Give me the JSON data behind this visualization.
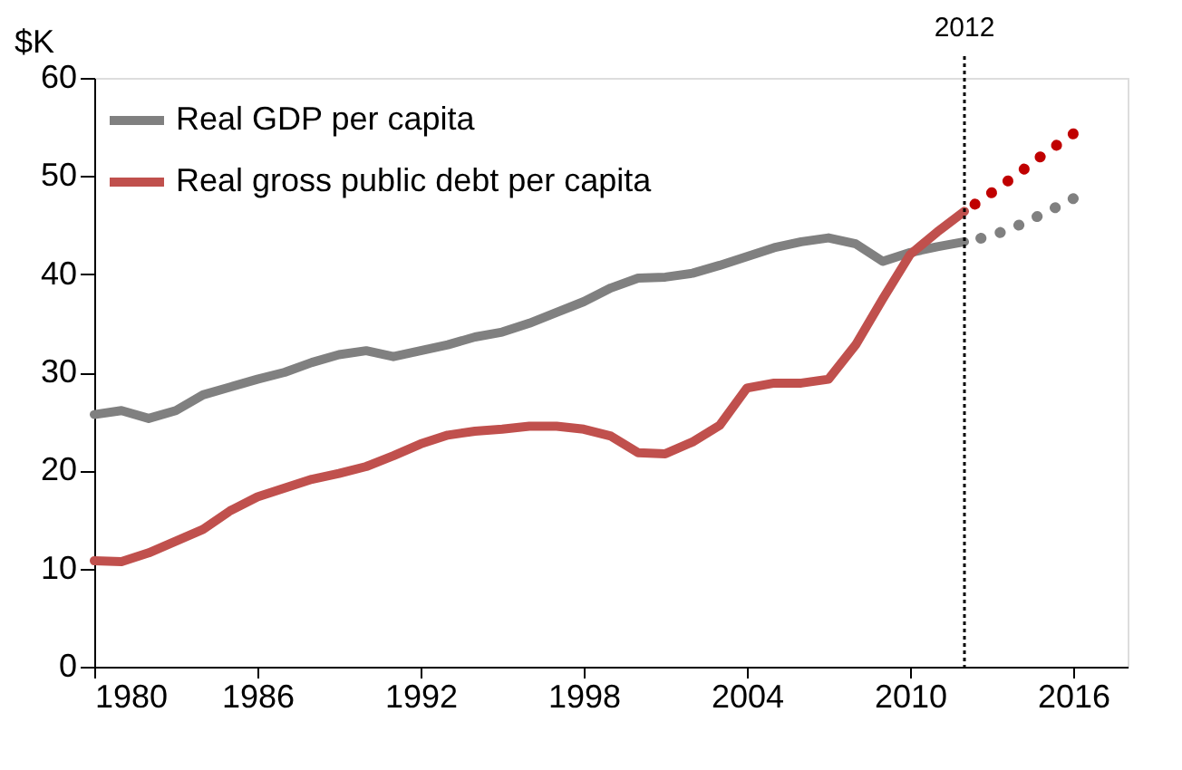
{
  "chart_data": {
    "type": "line",
    "ylabel": "$K",
    "x": [
      1980,
      1981,
      1982,
      1983,
      1984,
      1985,
      1986,
      1987,
      1988,
      1989,
      1990,
      1991,
      1992,
      1993,
      1994,
      1995,
      1996,
      1997,
      1998,
      1999,
      2000,
      2001,
      2002,
      2003,
      2004,
      2005,
      2006,
      2007,
      2008,
      2009,
      2010,
      2011,
      2012
    ],
    "series": [
      {
        "name": "Real GDP per capita",
        "color": "#808080",
        "line_style": "solid",
        "values": [
          25.7,
          26.1,
          25.3,
          26.1,
          27.7,
          28.5,
          29.3,
          30.0,
          31.0,
          31.8,
          32.2,
          31.6,
          32.2,
          32.8,
          33.6,
          34.1,
          35.0,
          36.1,
          37.2,
          38.6,
          39.6,
          39.7,
          40.1,
          40.9,
          41.8,
          42.7,
          43.3,
          43.7,
          43.1,
          41.3,
          42.2,
          42.8,
          43.3
        ]
      },
      {
        "name": "Real gross public debt per capita",
        "color": "#c0504d",
        "line_style": "solid",
        "values": [
          10.8,
          10.7,
          11.6,
          12.8,
          14.0,
          15.9,
          17.3,
          18.2,
          19.1,
          19.7,
          20.4,
          21.5,
          22.7,
          23.6,
          24.0,
          24.2,
          24.5,
          24.5,
          24.2,
          23.5,
          21.8,
          21.7,
          22.9,
          24.6,
          28.4,
          28.9,
          28.9,
          29.3,
          32.8,
          37.5,
          42.0,
          44.3,
          46.4
        ]
      },
      {
        "color": "#808080",
        "line_style": "dotted",
        "x": [
          2012,
          2013,
          2014,
          2015,
          2016
        ],
        "values": [
          43.3,
          43.9,
          45.0,
          46.3,
          47.7
        ]
      },
      {
        "color": "#c00000",
        "line_style": "dotted",
        "x": [
          2012,
          2013,
          2014,
          2015,
          2016
        ],
        "values": [
          46.4,
          48.3,
          50.3,
          52.4,
          54.3
        ]
      }
    ],
    "xlim": [
      1980,
      2018
    ],
    "xticks": [
      1980,
      1986,
      1992,
      1998,
      2004,
      2010,
      2016
    ],
    "ylim": [
      0,
      60
    ],
    "yticks": [
      0,
      10,
      20,
      30,
      40,
      50,
      60
    ],
    "ref_lines": [
      {
        "axis": "x",
        "value": 2012,
        "label": "2012",
        "color": "#000000",
        "line_style": "dotted"
      }
    ],
    "grid": false,
    "legend": "top left",
    "marker": "none"
  }
}
